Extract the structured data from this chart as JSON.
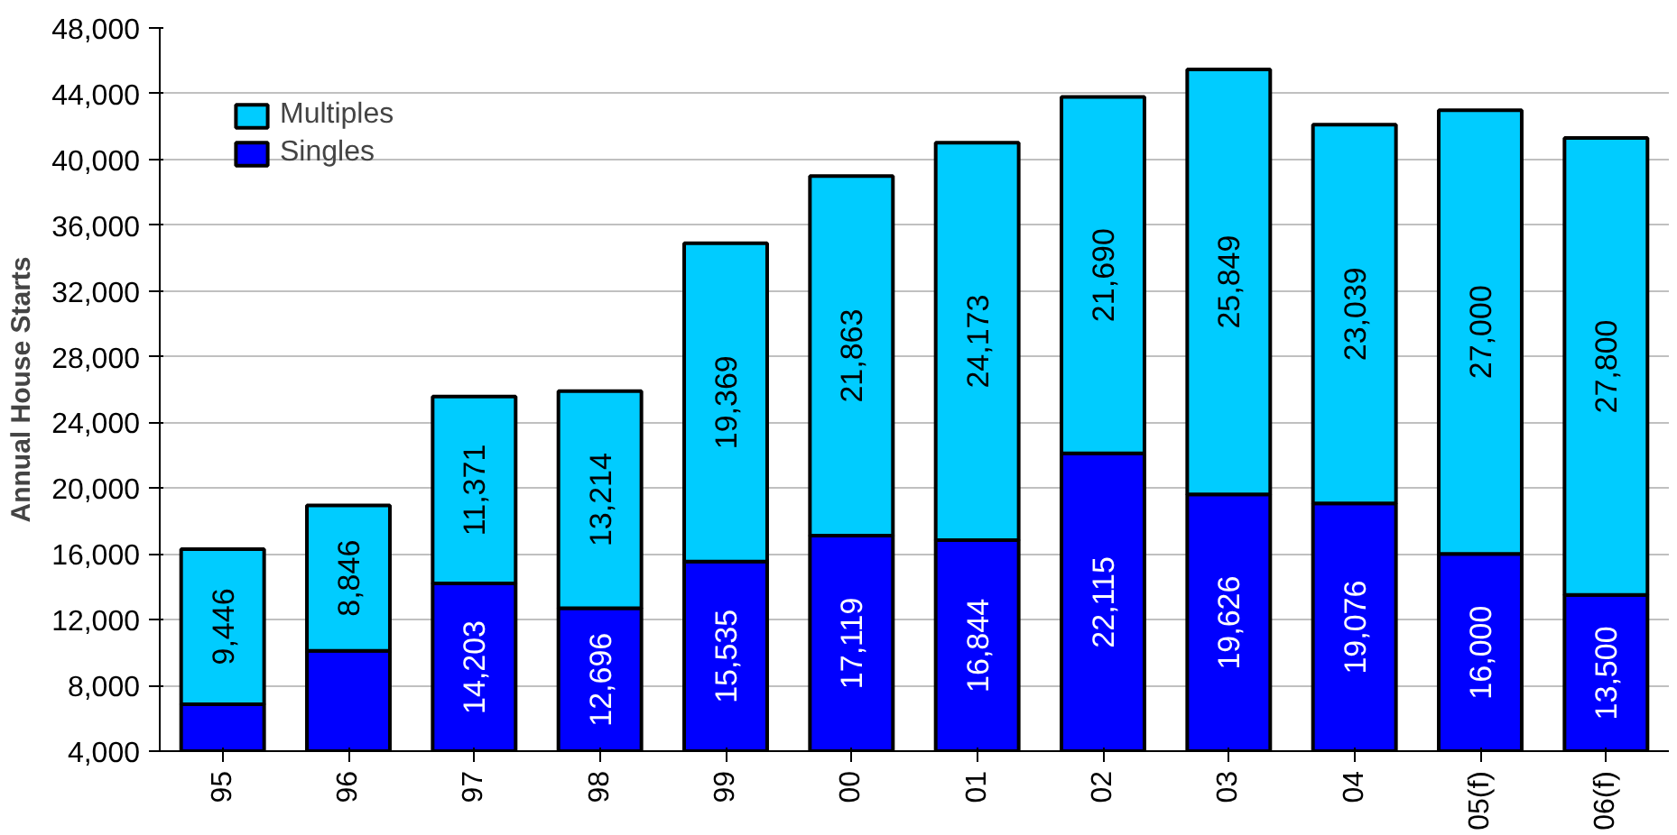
{
  "chart_data": {
    "type": "bar",
    "stacked": true,
    "ylabel": "Annual House Starts",
    "categories": [
      "95",
      "96",
      "97",
      "98",
      "99",
      "00",
      "01",
      "02",
      "03",
      "04",
      "05(f)",
      "06(f)"
    ],
    "series": [
      {
        "name": "Singles",
        "color": "#0000ff",
        "values": [
          6850,
          10100,
          14203,
          12696,
          15535,
          17119,
          16844,
          22115,
          19626,
          19076,
          16000,
          13500
        ],
        "value_labels": [
          null,
          null,
          "14,203",
          "12,696",
          "15,535",
          "17,119",
          "16,844",
          "22,115",
          "19,626",
          "19,076",
          "16,000",
          "13,500"
        ]
      },
      {
        "name": "Multiples",
        "color": "#00ccff",
        "values": [
          9446,
          8846,
          11371,
          13214,
          19369,
          21863,
          24173,
          21690,
          25849,
          23039,
          27000,
          27800
        ],
        "value_labels": [
          "9,446",
          "8,846",
          "11,371",
          "13,214",
          "19,369",
          "21,863",
          "24,173",
          "21,690",
          "25,849",
          "23,039",
          "27,000",
          "27,800"
        ]
      }
    ],
    "ylim": [
      4000,
      48000
    ],
    "yticks": [
      {
        "value": 4000,
        "label": "4,000"
      },
      {
        "value": 8000,
        "label": "8,000"
      },
      {
        "value": 12000,
        "label": "12,000"
      },
      {
        "value": 16000,
        "label": "16,000"
      },
      {
        "value": 20000,
        "label": "20,000"
      },
      {
        "value": 24000,
        "label": "24,000"
      },
      {
        "value": 28000,
        "label": "28,000"
      },
      {
        "value": 32000,
        "label": "32,000"
      },
      {
        "value": 36000,
        "label": "36,000"
      },
      {
        "value": 40000,
        "label": "40,000"
      },
      {
        "value": 44000,
        "label": "44,000"
      },
      {
        "value": 48000,
        "label": "48,000"
      }
    ],
    "grid": "y",
    "legend": "top left"
  }
}
